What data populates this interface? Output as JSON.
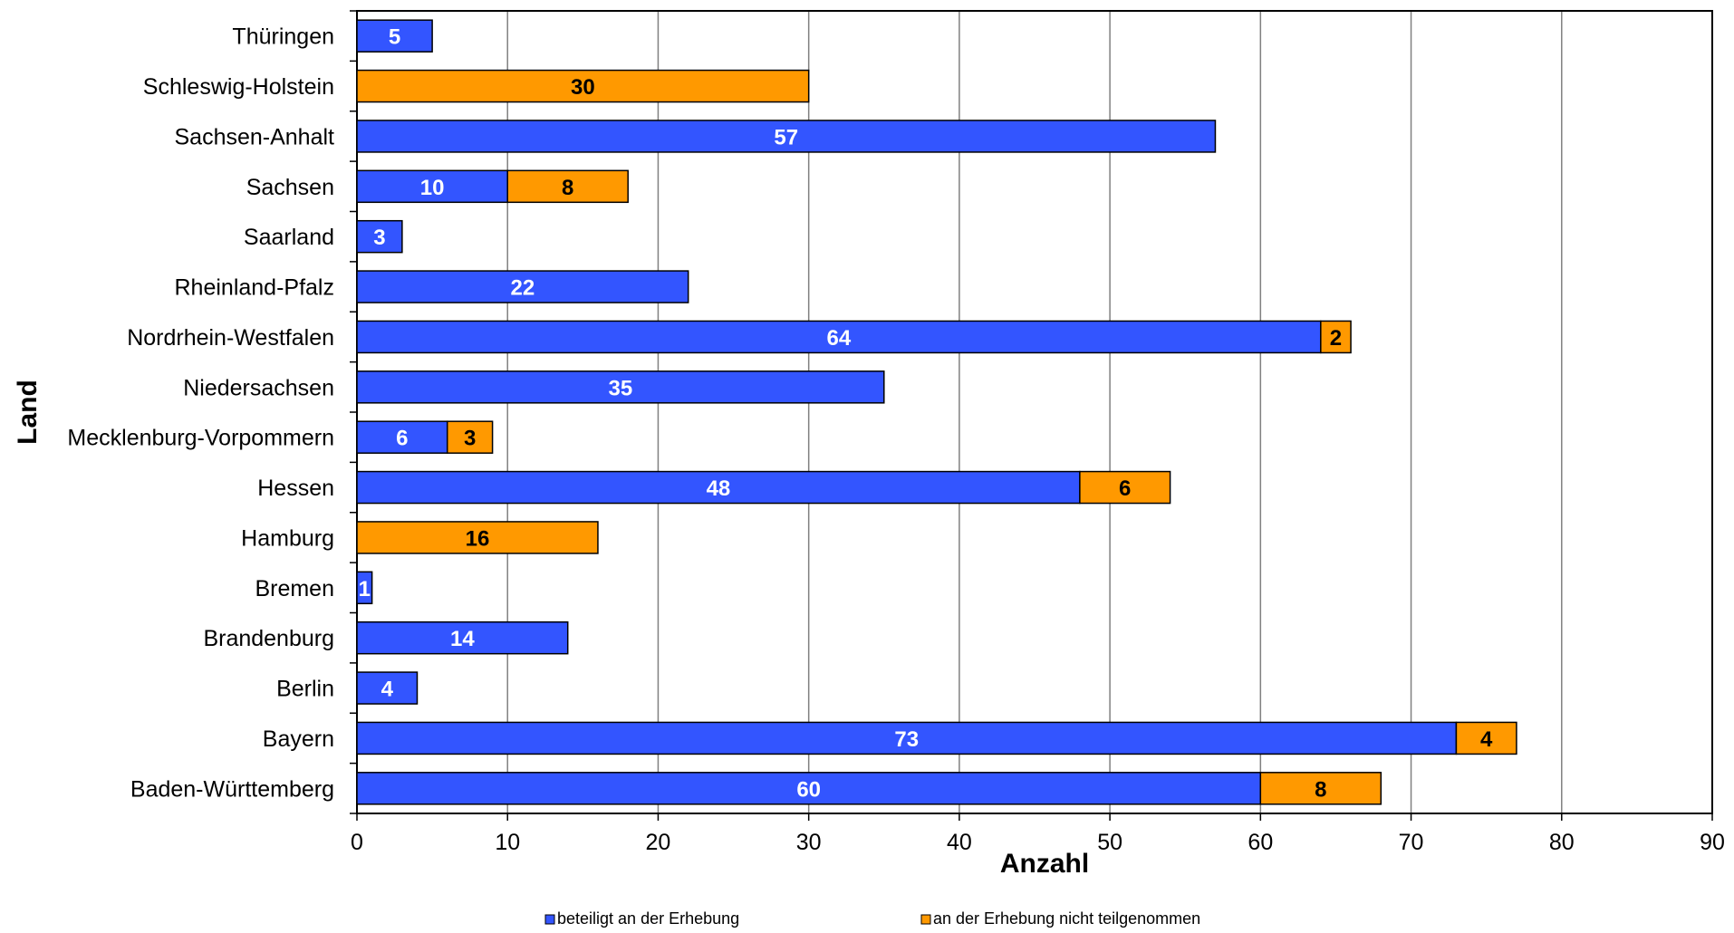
{
  "chart_data": {
    "type": "bar",
    "orientation": "horizontal",
    "stacked": true,
    "categories": [
      "Baden-Württemberg",
      "Bayern",
      "Berlin",
      "Brandenburg",
      "Bremen",
      "Hamburg",
      "Hessen",
      "Mecklenburg-Vorpommern",
      "Niedersachsen",
      "Nordrhein-Westfalen",
      "Rheinland-Pfalz",
      "Saarland",
      "Sachsen",
      "Sachsen-Anhalt",
      "Schleswig-Holstein",
      "Thüringen"
    ],
    "series": [
      {
        "name": "beteiligt an der Erhebung",
        "color": "#3355ff",
        "values": [
          60,
          73,
          4,
          14,
          1,
          0,
          48,
          6,
          35,
          64,
          22,
          3,
          10,
          57,
          0,
          5
        ]
      },
      {
        "name": "an der Erhebung nicht teilgenommen",
        "color": "#ff9900",
        "values": [
          8,
          4,
          0,
          0,
          0,
          16,
          6,
          3,
          0,
          2,
          0,
          0,
          8,
          0,
          30,
          0
        ]
      }
    ],
    "xlabel": "Anzahl",
    "ylabel": "Land",
    "xlim": [
      0,
      90
    ],
    "xticks": [
      0,
      10,
      20,
      30,
      40,
      50,
      60,
      70,
      80,
      90
    ],
    "grid": "vertical",
    "legend": "bottom"
  }
}
